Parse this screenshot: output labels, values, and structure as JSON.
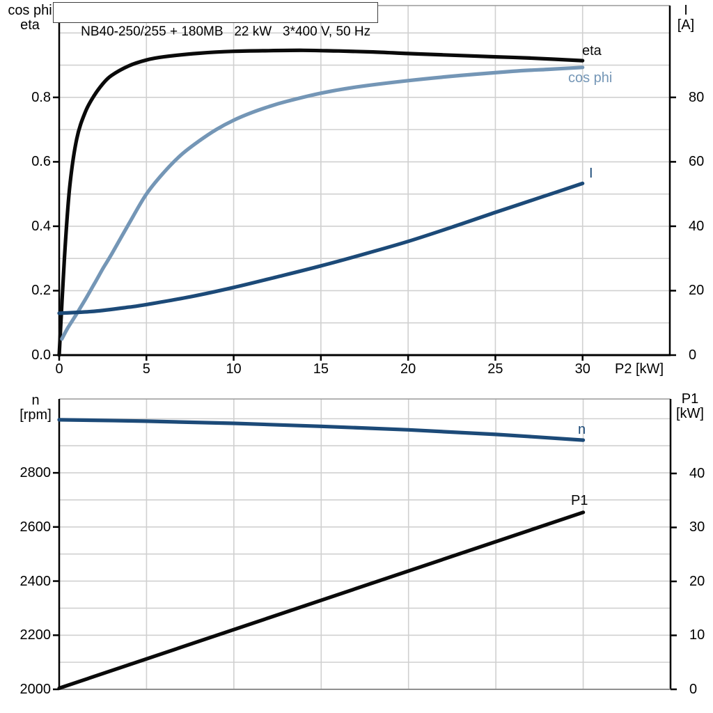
{
  "colors": {
    "eta_curve": "#0a0a0a",
    "cos_phi_curve": "#7496b6",
    "current_curve": "#1c4a78",
    "speed_curve": "#1c4a78",
    "p1_curve": "#0a0a0a",
    "gridline": "#d0d0d0",
    "axis_line": "#000000",
    "plot_border": "#999999",
    "bottom_border_lower_chart": "#8f8f8f",
    "text": "#000000"
  },
  "chart_data": [
    {
      "type": "line",
      "title": "NB40-250/255 + 180MB   22 kW   3*400 V, 50 Hz",
      "x_axis": {
        "title": "P2 [kW]",
        "min": 0,
        "max": 35,
        "grid_step": 5,
        "tick_values": [
          0,
          5,
          10,
          15,
          20,
          25,
          30
        ],
        "tick_labels": [
          "0",
          "5",
          "10",
          "15",
          "20",
          "25",
          "30"
        ]
      },
      "left_axis": {
        "title_lines": [
          "cos phi",
          "eta"
        ],
        "min": 0,
        "max": 1.085,
        "grid_step": 0.1,
        "tick_values": [
          0,
          0.2,
          0.4,
          0.6,
          0.8
        ],
        "tick_labels": [
          "0.0",
          "0.2",
          "0.4",
          "0.6",
          "0.8"
        ]
      },
      "right_axis": {
        "title_lines": [
          "I",
          "[A]"
        ],
        "min": 0,
        "max": 108.5,
        "grid_step": 10,
        "tick_values": [
          0,
          20,
          40,
          60,
          80
        ],
        "tick_labels": [
          "0",
          "20",
          "40",
          "60",
          "80"
        ]
      },
      "legend_position": "curve-end-labels",
      "grid": "on",
      "series": [
        {
          "name": "eta",
          "label": "eta",
          "axis": "left",
          "color": "#0a0a0a",
          "x": [
            0,
            0.3,
            0.6,
            1,
            1.5,
            2,
            2.5,
            3,
            4,
            5,
            6,
            8,
            10,
            12,
            14,
            16,
            18,
            20,
            22,
            25,
            27,
            30
          ],
          "values": [
            0,
            0.3,
            0.52,
            0.67,
            0.755,
            0.805,
            0.842,
            0.868,
            0.898,
            0.916,
            0.926,
            0.937,
            0.943,
            0.945,
            0.946,
            0.944,
            0.941,
            0.936,
            0.932,
            0.926,
            0.922,
            0.914
          ]
        },
        {
          "name": "cos phi",
          "label": "cos phi",
          "axis": "left",
          "color": "#7496b6",
          "x": [
            0.15,
            0.5,
            1,
            1.5,
            2,
            2.5,
            3,
            4,
            5,
            6,
            7,
            8,
            9,
            10,
            11,
            12,
            13,
            15,
            17,
            20,
            23,
            26,
            28,
            30
          ],
          "values": [
            0.05,
            0.085,
            0.128,
            0.173,
            0.22,
            0.268,
            0.313,
            0.408,
            0.5,
            0.567,
            0.622,
            0.664,
            0.7,
            0.729,
            0.752,
            0.771,
            0.787,
            0.813,
            0.832,
            0.852,
            0.868,
            0.881,
            0.887,
            0.893
          ]
        },
        {
          "name": "I",
          "label": "I",
          "axis": "right",
          "color": "#1c4a78",
          "x": [
            0,
            2,
            4,
            5,
            7.5,
            10,
            12.5,
            15,
            17.5,
            20,
            22.5,
            25,
            27.5,
            30
          ],
          "values": [
            13,
            13.6,
            14.9,
            15.7,
            18.1,
            21,
            24.3,
            27.7,
            31.4,
            35.3,
            39.7,
            44.3,
            48.8,
            53.3
          ]
        }
      ]
    },
    {
      "type": "line",
      "title": "",
      "x_axis": {
        "title": "",
        "min": 0,
        "max": 35,
        "grid_step": 5,
        "tick_values": [],
        "tick_labels": []
      },
      "left_axis": {
        "title_lines": [
          "n",
          "[rpm]"
        ],
        "min": 2000,
        "max": 3073,
        "grid_step": 100,
        "tick_values": [
          2000,
          2200,
          2400,
          2600,
          2800
        ],
        "tick_labels": [
          "2000",
          "2200",
          "2400",
          "2600",
          "2800"
        ]
      },
      "right_axis": {
        "title_lines": [
          "P1",
          "[kW]"
        ],
        "min": 0,
        "max": 53.8,
        "grid_step": 5,
        "tick_values": [
          0,
          10,
          20,
          30,
          40
        ],
        "tick_labels": [
          "0",
          "10",
          "20",
          "30",
          "40"
        ]
      },
      "legend_position": "curve-end-labels",
      "grid": "on",
      "series": [
        {
          "name": "n",
          "label": "n",
          "axis": "left",
          "color": "#1c4a78",
          "x": [
            0,
            5,
            10,
            15,
            20,
            25,
            30
          ],
          "values": [
            2996,
            2991,
            2983,
            2972,
            2959,
            2942,
            2921
          ]
        },
        {
          "name": "P1",
          "label": "P1",
          "axis": "right",
          "color": "#0a0a0a",
          "x": [
            0,
            30
          ],
          "values": [
            0.2,
            32.8
          ]
        }
      ]
    }
  ]
}
